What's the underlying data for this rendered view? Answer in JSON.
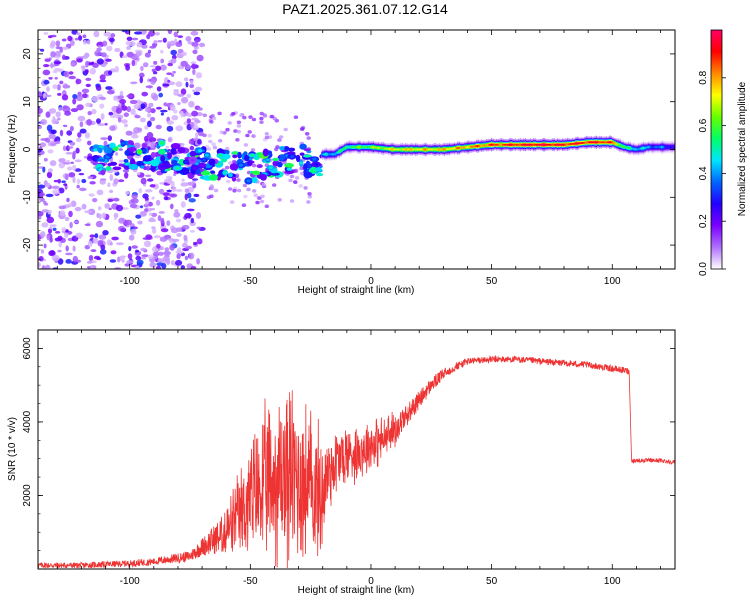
{
  "title": "PAZ1.2025.361.07.12.G14",
  "chart_data": [
    {
      "type": "heatmap",
      "xlabel": "Height of straight line (km)",
      "ylabel": "Frequency (Hz)",
      "xlim": [
        -138,
        126
      ],
      "ylim": [
        -25,
        25
      ],
      "x_ticks": [
        -100,
        -50,
        0,
        50,
        100
      ],
      "y_ticks": [
        -20,
        -10,
        0,
        10,
        20
      ],
      "colorbar": {
        "label": "Normalized spectral amplitude",
        "range": [
          0,
          1
        ],
        "ticks": [
          "0.0",
          "0.2",
          "0.4",
          "0.6",
          "0.8"
        ],
        "colors": [
          "#ffffff",
          "#b070ff",
          "#7a00ff",
          "#2200ff",
          "#0066ff",
          "#00e5ff",
          "#00ff66",
          "#66ff00",
          "#ffff00",
          "#ff8800",
          "#ff0000",
          "#ff0066"
        ]
      },
      "ridge": [
        {
          "x": -110,
          "f": -2.0,
          "a": 0.35
        },
        {
          "x": -100,
          "f": -1.5,
          "a": 0.3
        },
        {
          "x": -90,
          "f": -1.5,
          "a": 0.3
        },
        {
          "x": -80,
          "f": -2.0,
          "a": 0.3
        },
        {
          "x": -70,
          "f": -3.0,
          "a": 0.35
        },
        {
          "x": -60,
          "f": -3.0,
          "a": 0.35
        },
        {
          "x": -50,
          "f": -4.0,
          "a": 0.3
        },
        {
          "x": -40,
          "f": -3.0,
          "a": 0.3
        },
        {
          "x": -30,
          "f": -2.0,
          "a": 0.35
        },
        {
          "x": -22,
          "f": -3.0,
          "a": 0.35
        },
        {
          "x": -20,
          "f": -1.0,
          "a": 0.4
        },
        {
          "x": -15,
          "f": -1.0,
          "a": 0.45
        },
        {
          "x": -10,
          "f": 0.5,
          "a": 0.55
        },
        {
          "x": 0,
          "f": 0.5,
          "a": 0.62
        },
        {
          "x": 10,
          "f": 0.0,
          "a": 0.72
        },
        {
          "x": 20,
          "f": 0.0,
          "a": 0.75
        },
        {
          "x": 30,
          "f": 0.0,
          "a": 0.75
        },
        {
          "x": 40,
          "f": 0.5,
          "a": 0.8
        },
        {
          "x": 50,
          "f": 1.0,
          "a": 0.85
        },
        {
          "x": 60,
          "f": 1.0,
          "a": 0.9
        },
        {
          "x": 70,
          "f": 1.0,
          "a": 0.95
        },
        {
          "x": 80,
          "f": 1.0,
          "a": 0.9
        },
        {
          "x": 90,
          "f": 1.5,
          "a": 0.9
        },
        {
          "x": 95,
          "f": 1.5,
          "a": 0.92
        },
        {
          "x": 100,
          "f": 1.5,
          "a": 0.85
        },
        {
          "x": 105,
          "f": 0.5,
          "a": 0.55
        },
        {
          "x": 110,
          "f": 0.0,
          "a": 0.45
        },
        {
          "x": 115,
          "f": 0.5,
          "a": 0.4
        },
        {
          "x": 120,
          "f": 0.5,
          "a": 0.35
        },
        {
          "x": 126,
          "f": 0.5,
          "a": 0.3
        }
      ]
    },
    {
      "type": "line",
      "xlabel": "Height of straight line (km)",
      "ylabel": "SNR (10 * v/v)",
      "xlim": [
        -138,
        126
      ],
      "ylim": [
        0,
        6500
      ],
      "x_ticks": [
        -100,
        -50,
        0,
        50,
        100
      ],
      "y_ticks": [
        2000,
        4000,
        6000
      ],
      "series": [
        {
          "color": "#ee3333",
          "x": [
            -138,
            -120,
            -100,
            -90,
            -80,
            -75,
            -70,
            -65,
            -60,
            -55,
            -50,
            -45,
            -40,
            -35,
            -30,
            -25,
            -20,
            -18,
            -15,
            -10,
            -5,
            0,
            5,
            10,
            15,
            20,
            25,
            30,
            35,
            40,
            50,
            60,
            70,
            80,
            90,
            100,
            105,
            107,
            108,
            110,
            115,
            120,
            126
          ],
          "y": [
            100,
            100,
            150,
            200,
            300,
            350,
            600,
            800,
            1000,
            1400,
            1900,
            2200,
            2400,
            2600,
            2500,
            2200,
            2000,
            2600,
            2900,
            3100,
            3200,
            3400,
            3500,
            3800,
            4200,
            4600,
            5000,
            5300,
            5500,
            5650,
            5700,
            5700,
            5650,
            5600,
            5550,
            5450,
            5400,
            5380,
            2950,
            2950,
            2950,
            2950,
            2900
          ],
          "noise": [
            80,
            80,
            90,
            100,
            130,
            150,
            250,
            400,
            600,
            900,
            1300,
            1600,
            1800,
            2000,
            1900,
            1700,
            1300,
            1000,
            800,
            700,
            600,
            600,
            500,
            400,
            300,
            250,
            200,
            150,
            120,
            100,
            90,
            90,
            90,
            90,
            90,
            90,
            90,
            90,
            60,
            60,
            60,
            60,
            60
          ]
        }
      ]
    }
  ]
}
